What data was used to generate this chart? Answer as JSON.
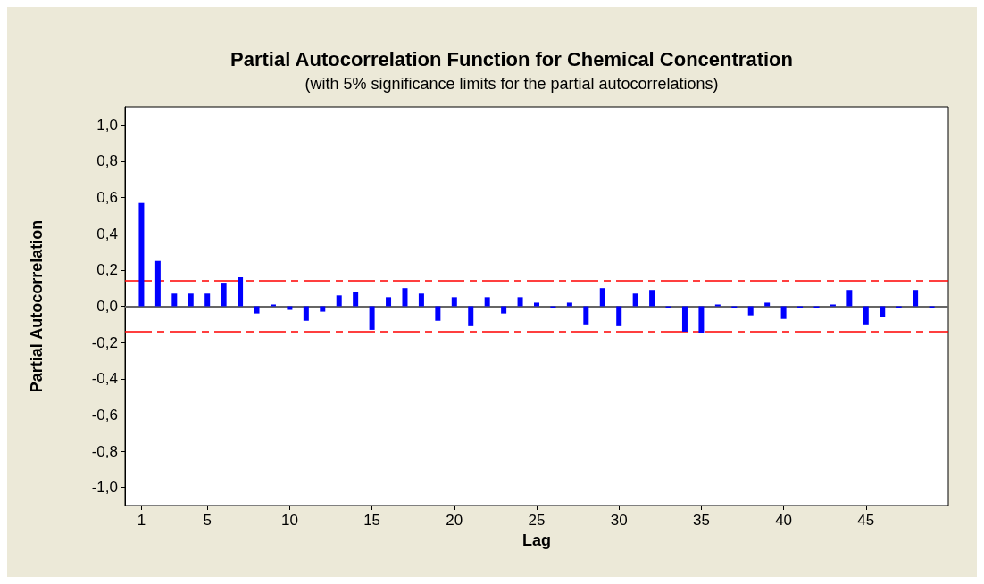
{
  "chart_data": {
    "type": "bar",
    "title": "Partial Autocorrelation Function for Chemical Concentration",
    "subtitle": "(with 5% significance limits for the partial autocorrelations)",
    "xlabel": "Lag",
    "ylabel": "Partial Autocorrelation",
    "x": [
      1,
      2,
      3,
      4,
      5,
      6,
      7,
      8,
      9,
      10,
      11,
      12,
      13,
      14,
      15,
      16,
      17,
      18,
      19,
      20,
      21,
      22,
      23,
      24,
      25,
      26,
      27,
      28,
      29,
      30,
      31,
      32,
      33,
      34,
      35,
      36,
      37,
      38,
      39,
      40,
      41,
      42,
      43,
      44,
      45,
      46,
      47,
      48,
      49
    ],
    "values": [
      0.57,
      0.25,
      0.07,
      0.07,
      0.07,
      0.13,
      0.16,
      -0.04,
      0.01,
      -0.02,
      -0.08,
      -0.03,
      0.06,
      0.08,
      -0.13,
      0.05,
      0.1,
      0.07,
      -0.08,
      0.05,
      -0.11,
      0.05,
      -0.04,
      0.05,
      0.02,
      -0.01,
      0.02,
      -0.1,
      0.1,
      -0.11,
      0.07,
      0.09,
      -0.01,
      -0.14,
      -0.15,
      0.01,
      -0.01,
      -0.05,
      0.02,
      -0.07,
      -0.01,
      -0.01,
      0.01,
      0.09,
      -0.1,
      -0.06,
      -0.01,
      0.09,
      -0.01
    ],
    "color": "#0000ff",
    "xlim": [
      0,
      50
    ],
    "xticks": [
      1,
      5,
      10,
      15,
      20,
      25,
      30,
      35,
      40,
      45
    ],
    "ylim": [
      -1.1,
      1.1
    ],
    "yticks": [
      {
        "value": -1,
        "label": "-1,0"
      },
      {
        "value": -0.8,
        "label": "-0,8"
      },
      {
        "value": -0.6,
        "label": "-0,6"
      },
      {
        "value": -0.4,
        "label": "-0,4"
      },
      {
        "value": -0.2,
        "label": "-0,2"
      },
      {
        "value": 0,
        "label": "0,0"
      },
      {
        "value": 0.2,
        "label": "0,2"
      },
      {
        "value": 0.4,
        "label": "0,4"
      },
      {
        "value": 0.6,
        "label": "0,6"
      },
      {
        "value": 0.8,
        "label": "0,8"
      },
      {
        "value": 1,
        "label": "1,0"
      }
    ],
    "ref_lines": [
      {
        "axis": "y",
        "value": 0,
        "color": "#666666",
        "line_style": "solid"
      },
      {
        "axis": "y",
        "value": 0.14,
        "color": "#ff0000",
        "line_style": "dashed"
      },
      {
        "axis": "y",
        "value": -0.14,
        "color": "#ff0000",
        "line_style": "dashed"
      }
    ],
    "grid": false
  }
}
